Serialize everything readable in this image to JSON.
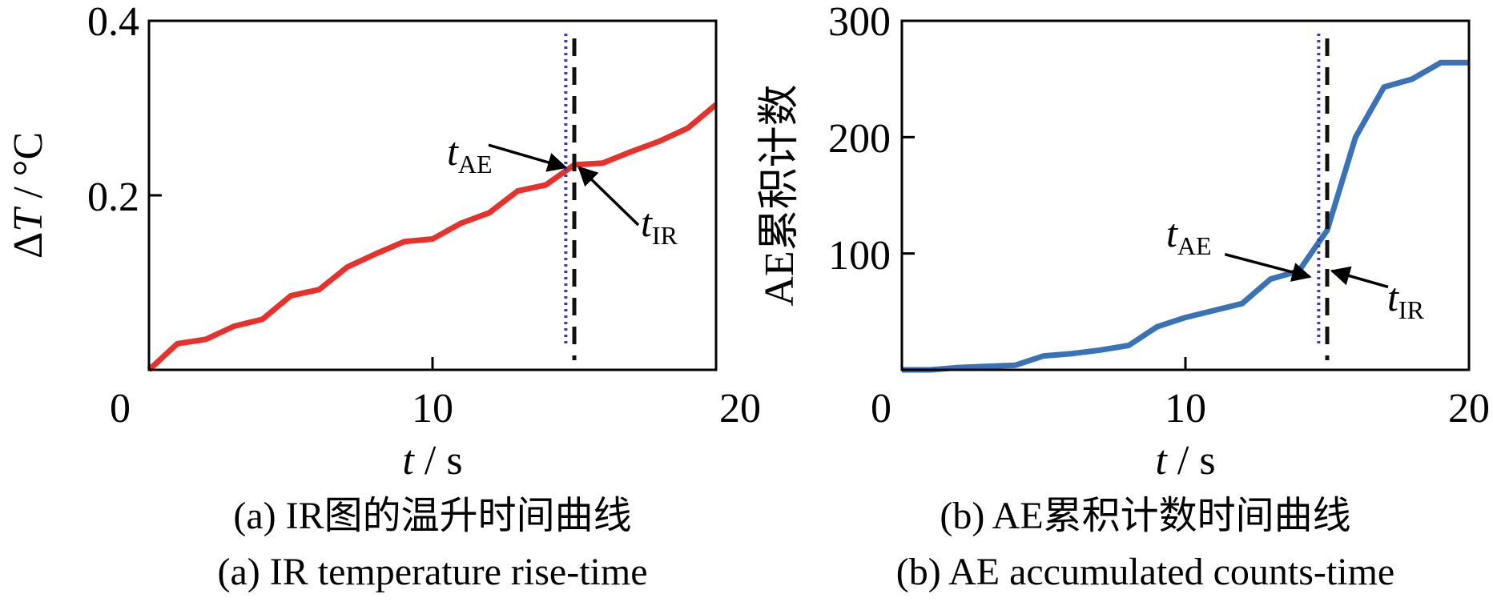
{
  "chart_data": [
    {
      "type": "line",
      "panel": "a",
      "xlim": [
        0,
        20
      ],
      "ylim": [
        0,
        0.4
      ],
      "x_ticks": [
        "0",
        "10",
        "20"
      ],
      "y_ticks": [
        "0.2",
        "0.4"
      ],
      "x_tick_values": [
        0,
        10,
        20
      ],
      "y_tick_values": [
        0.2,
        0.4
      ],
      "xlabel": {
        "var": "t",
        "unit": " / s"
      },
      "ylabel": {
        "prefix": "Δ",
        "var": "T",
        "unit": " / °C"
      },
      "caption_cn": "(a)  IR图的温升时间曲线",
      "caption_en": "(a)  IR temperature rise-time",
      "grid": false,
      "series": [
        {
          "color": "#e8312a",
          "x": [
            0,
            1,
            2,
            3,
            4,
            5,
            6,
            7,
            8,
            9,
            10,
            11,
            12,
            13,
            14,
            15,
            16,
            17,
            18,
            19,
            20
          ],
          "y": [
            0.0,
            0.03,
            0.035,
            0.05,
            0.058,
            0.085,
            0.092,
            0.118,
            0.133,
            0.147,
            0.15,
            0.168,
            0.18,
            0.205,
            0.212,
            0.235,
            0.237,
            0.25,
            0.262,
            0.277,
            0.304
          ]
        }
      ],
      "markers": {
        "t_AE": {
          "x": 14.7,
          "color": "#3b3f9e",
          "style": "dotted"
        },
        "t_IR": {
          "x": 15.0,
          "color": "#111111",
          "style": "dashed"
        }
      },
      "annotations": [
        {
          "main": "t",
          "sub": "AE",
          "target": [
            14.8,
            0.232
          ]
        },
        {
          "main": "t",
          "sub": "IR",
          "target": [
            15.0,
            0.232
          ]
        }
      ]
    },
    {
      "type": "line",
      "panel": "b",
      "xlim": [
        0,
        20
      ],
      "ylim": [
        0,
        300
      ],
      "x_ticks": [
        "0",
        "10",
        "20"
      ],
      "y_ticks": [
        "100",
        "200",
        "300"
      ],
      "x_tick_values": [
        0,
        10,
        20
      ],
      "y_tick_values": [
        100,
        200,
        300
      ],
      "xlabel": {
        "var": "t",
        "unit": " / s"
      },
      "ylabel": {
        "text": "AE累积计数"
      },
      "caption_cn": "(b)  AE累积计数时间曲线",
      "caption_en": "(b)  AE accumulated counts-time",
      "grid": false,
      "series": [
        {
          "color": "#3a72b8",
          "x": [
            0,
            1,
            2,
            3,
            4,
            5,
            6,
            7,
            8,
            9,
            10,
            11,
            12,
            13,
            14,
            15,
            16,
            17,
            18,
            19,
            20
          ],
          "y": [
            0,
            0,
            2,
            3,
            4,
            12,
            14,
            17,
            21,
            37,
            45,
            51,
            57,
            78,
            85,
            120,
            200,
            243,
            250,
            264,
            264
          ]
        }
      ],
      "markers": {
        "t_AE": {
          "x": 14.7,
          "color": "#3b3f9e",
          "style": "dotted"
        },
        "t_IR": {
          "x": 15.0,
          "color": "#111111",
          "style": "dashed"
        }
      },
      "annotations": [
        {
          "main": "t",
          "sub": "AE",
          "target": [
            14.5,
            80
          ]
        },
        {
          "main": "t",
          "sub": "IR",
          "target": [
            15.0,
            85
          ]
        }
      ]
    }
  ]
}
